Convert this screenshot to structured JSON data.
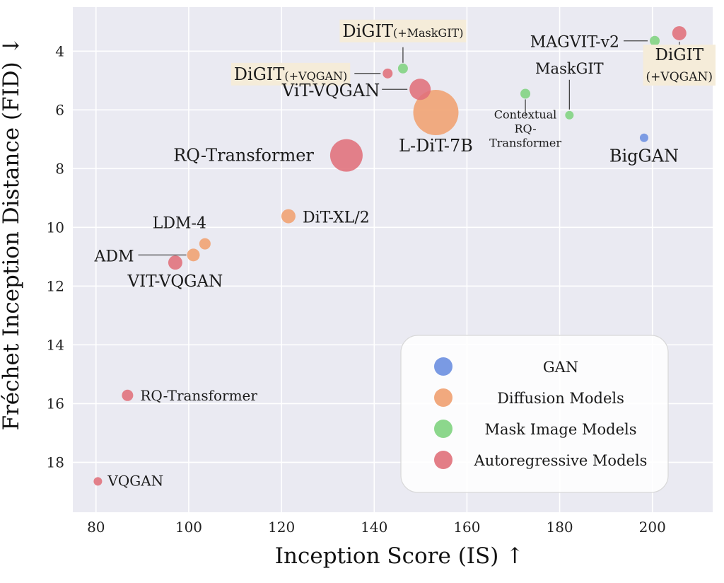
{
  "chart_data": {
    "type": "scatter",
    "title": "",
    "xlabel": "Inception Score (IS) ↑",
    "ylabel": "Fréchet Inception Distance (FID) ↓",
    "xlim": [
      75,
      213
    ],
    "ylim": [
      19.7,
      2.5
    ],
    "y_inverted": true,
    "xticks": [
      80,
      100,
      120,
      140,
      160,
      180,
      200
    ],
    "yticks": [
      4,
      6,
      8,
      10,
      12,
      14,
      16,
      18
    ],
    "grid": true,
    "background": "#eaeaf2",
    "legend_position": "lower-right",
    "categories": [
      {
        "key": "gan",
        "name": "GAN",
        "color": "#6c8fe0"
      },
      {
        "key": "diffusion",
        "name": "Diffusion Models",
        "color": "#f0a070"
      },
      {
        "key": "mask",
        "name": "Mask Image Models",
        "color": "#7fd37f"
      },
      {
        "key": "ar",
        "name": "Autoregressive Models",
        "color": "#e0707a"
      }
    ],
    "points": [
      {
        "label": "BigGAN",
        "x": 198.2,
        "y": 6.95,
        "category": "gan",
        "size": 6
      },
      {
        "label": "L-DiT-7B",
        "x": 153.3,
        "y": 6.09,
        "category": "diffusion",
        "size": 32
      },
      {
        "label": "DiT-XL/2",
        "x": 121.5,
        "y": 9.62,
        "category": "diffusion",
        "size": 10
      },
      {
        "label": "LDM-4",
        "x": 103.5,
        "y": 10.56,
        "category": "diffusion",
        "size": 8
      },
      {
        "label": "ADM",
        "x": 101.0,
        "y": 10.94,
        "category": "diffusion",
        "size": 9
      },
      {
        "label": "DiGIT(+MaskGIT)",
        "x": 146.2,
        "y": 4.59,
        "category": "mask",
        "size": 7
      },
      {
        "label": "MAGVIT-v2",
        "x": 200.5,
        "y": 3.65,
        "category": "mask",
        "size": 7
      },
      {
        "label": "Contextual RQ-Transformer",
        "x": 172.6,
        "y": 5.45,
        "category": "mask",
        "size": 7
      },
      {
        "label": "MaskGIT",
        "x": 182.1,
        "y": 6.18,
        "category": "mask",
        "size": 6
      },
      {
        "label": "DiGIT(+VQGAN)",
        "x": 205.8,
        "y": 3.39,
        "category": "ar",
        "size": 10
      },
      {
        "label": "DiGIT(+VQGAN)",
        "x": 142.9,
        "y": 4.76,
        "category": "ar",
        "size": 7
      },
      {
        "label": "ViT-VQGAN",
        "x": 149.9,
        "y": 5.3,
        "category": "ar",
        "size": 15
      },
      {
        "label": "RQ-Transformer",
        "x": 134.0,
        "y": 7.55,
        "category": "ar",
        "size": 23
      },
      {
        "label": "VIT-VQGAN",
        "x": 97.1,
        "y": 11.2,
        "category": "ar",
        "size": 10
      },
      {
        "label": "RQ-Transformer",
        "x": 86.8,
        "y": 15.72,
        "category": "ar",
        "size": 8
      },
      {
        "label": "VQGAN",
        "x": 80.4,
        "y": 18.65,
        "category": "ar",
        "size": 6
      }
    ]
  }
}
